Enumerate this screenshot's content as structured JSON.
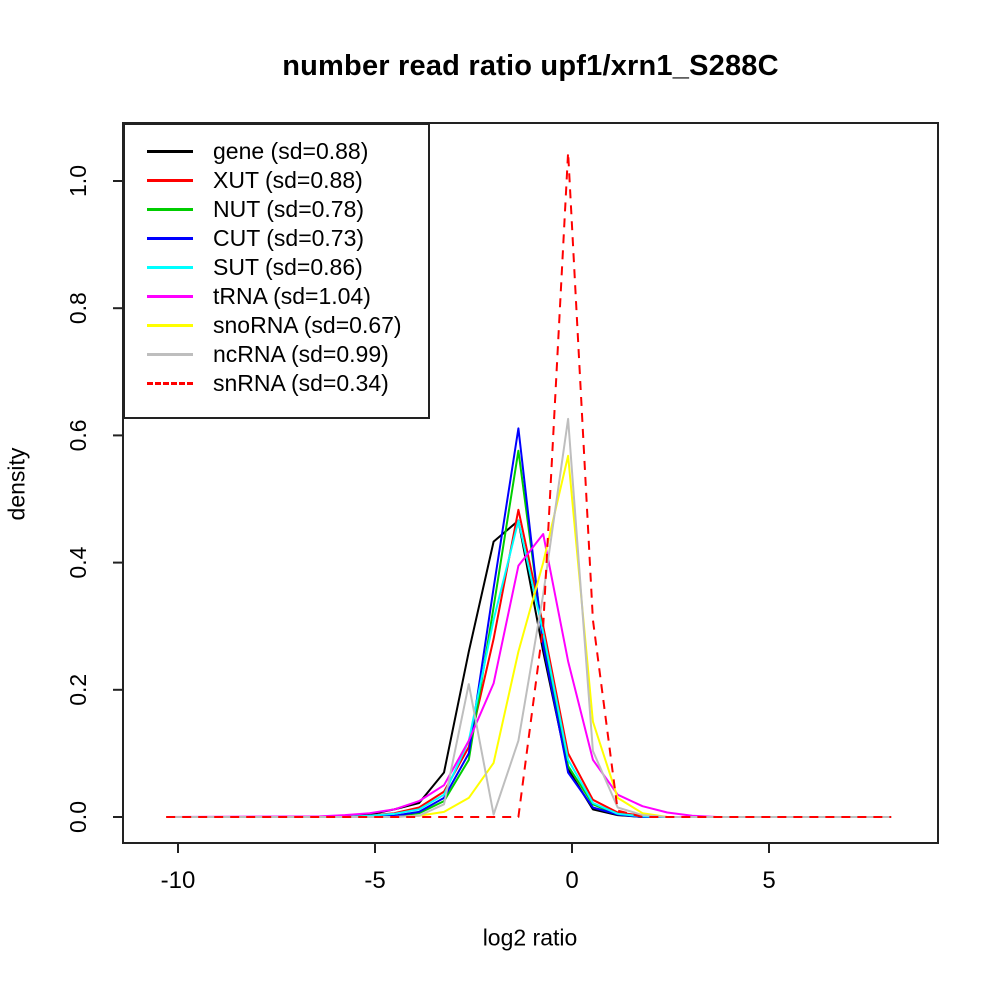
{
  "title": "number read ratio upf1/xrn1_S288C",
  "chart_data": {
    "type": "line",
    "title": "number read ratio upf1/xrn1_S288C",
    "x_axis": {
      "label": "log2 ratio",
      "tick_values": [
        -10,
        -5,
        0,
        5
      ],
      "tick_labels": [
        "-10",
        "-5",
        "0",
        "5"
      ],
      "range": [
        -11.4,
        9.3
      ]
    },
    "y_axis": {
      "label": "density",
      "tick_values": [
        0.0,
        0.2,
        0.4,
        0.6,
        0.8,
        1.0
      ],
      "tick_labels": [
        "0.0",
        "0.2",
        "0.4",
        "0.6",
        "0.8",
        "1.0"
      ],
      "range": [
        0,
        1.09
      ]
    },
    "legend_position": "topleft",
    "grid": false,
    "x": [
      -10.3,
      -6.4,
      -5.77,
      -5.14,
      -4.51,
      -3.88,
      -3.25,
      -2.62,
      -1.99,
      -1.36,
      -0.73,
      -0.1,
      0.53,
      1.16,
      1.79,
      2.42,
      3.05,
      3.68,
      4.31,
      8.1
    ],
    "series": [
      {
        "name": "gene",
        "label": "gene (sd=0.88)",
        "color": "#000000",
        "dashed": false,
        "values": [
          0,
          0,
          0.002,
          0.004,
          0.012,
          0.022,
          0.07,
          0.26,
          0.433,
          0.466,
          0.26,
          0.075,
          0.012,
          0.003,
          0,
          0,
          0,
          0,
          0,
          0
        ]
      },
      {
        "name": "XUT",
        "label": "XUT (sd=0.88)",
        "color": "#FF0000",
        "dashed": false,
        "values": [
          0,
          0,
          0,
          0.002,
          0.006,
          0.015,
          0.04,
          0.11,
          0.28,
          0.483,
          0.3,
          0.1,
          0.027,
          0.007,
          0.002,
          0,
          0,
          0,
          0,
          0
        ]
      },
      {
        "name": "NUT",
        "label": "NUT (sd=0.78)",
        "color": "#00CD00",
        "dashed": false,
        "values": [
          0,
          0,
          0,
          0,
          0.002,
          0.006,
          0.025,
          0.09,
          0.33,
          0.576,
          0.28,
          0.08,
          0.02,
          0.004,
          0,
          0,
          0,
          0,
          0,
          0
        ]
      },
      {
        "name": "CUT",
        "label": "CUT (sd=0.73)",
        "color": "#0000FF",
        "dashed": false,
        "values": [
          0,
          0,
          0,
          0,
          0.002,
          0.008,
          0.03,
          0.1,
          0.36,
          0.611,
          0.27,
          0.07,
          0.015,
          0.004,
          0,
          0,
          0,
          0,
          0,
          0
        ]
      },
      {
        "name": "SUT",
        "label": "SUT (sd=0.86)",
        "color": "#00FFFF",
        "dashed": false,
        "values": [
          0,
          0,
          0,
          0.002,
          0.005,
          0.012,
          0.035,
          0.12,
          0.31,
          0.466,
          0.29,
          0.09,
          0.022,
          0.005,
          0.001,
          0,
          0,
          0,
          0,
          0
        ]
      },
      {
        "name": "tRNA",
        "label": "tRNA (sd=1.04)",
        "color": "#FF00FF",
        "dashed": false,
        "values": [
          0,
          0.001,
          0.003,
          0.006,
          0.012,
          0.025,
          0.05,
          0.12,
          0.21,
          0.395,
          0.445,
          0.245,
          0.09,
          0.035,
          0.017,
          0.007,
          0.002,
          0,
          0,
          0
        ]
      },
      {
        "name": "snoRNA",
        "label": "snoRNA (sd=0.67)",
        "color": "#FFFF00",
        "dashed": false,
        "values": [
          0,
          0,
          0,
          0,
          0,
          0.002,
          0.008,
          0.03,
          0.085,
          0.26,
          0.4,
          0.568,
          0.15,
          0.03,
          0.006,
          0,
          0,
          0,
          0,
          0
        ]
      },
      {
        "name": "ncRNA",
        "label": "ncRNA (sd=0.99)",
        "color": "#BEBEBE",
        "dashed": false,
        "values": [
          0,
          0,
          0,
          0,
          0,
          0.002,
          0.02,
          0.209,
          0.004,
          0.12,
          0.35,
          0.626,
          0.104,
          0.015,
          0.003,
          0,
          0,
          0,
          0,
          0
        ]
      },
      {
        "name": "snRNA",
        "label": "snRNA (sd=0.34)",
        "color": "#FF0000",
        "dashed": true,
        "values": [
          0,
          0,
          0,
          0,
          0,
          0,
          0,
          0,
          0,
          0,
          0.3,
          1.045,
          0.31,
          0.01,
          0,
          0,
          0,
          0,
          0,
          0
        ]
      }
    ]
  }
}
